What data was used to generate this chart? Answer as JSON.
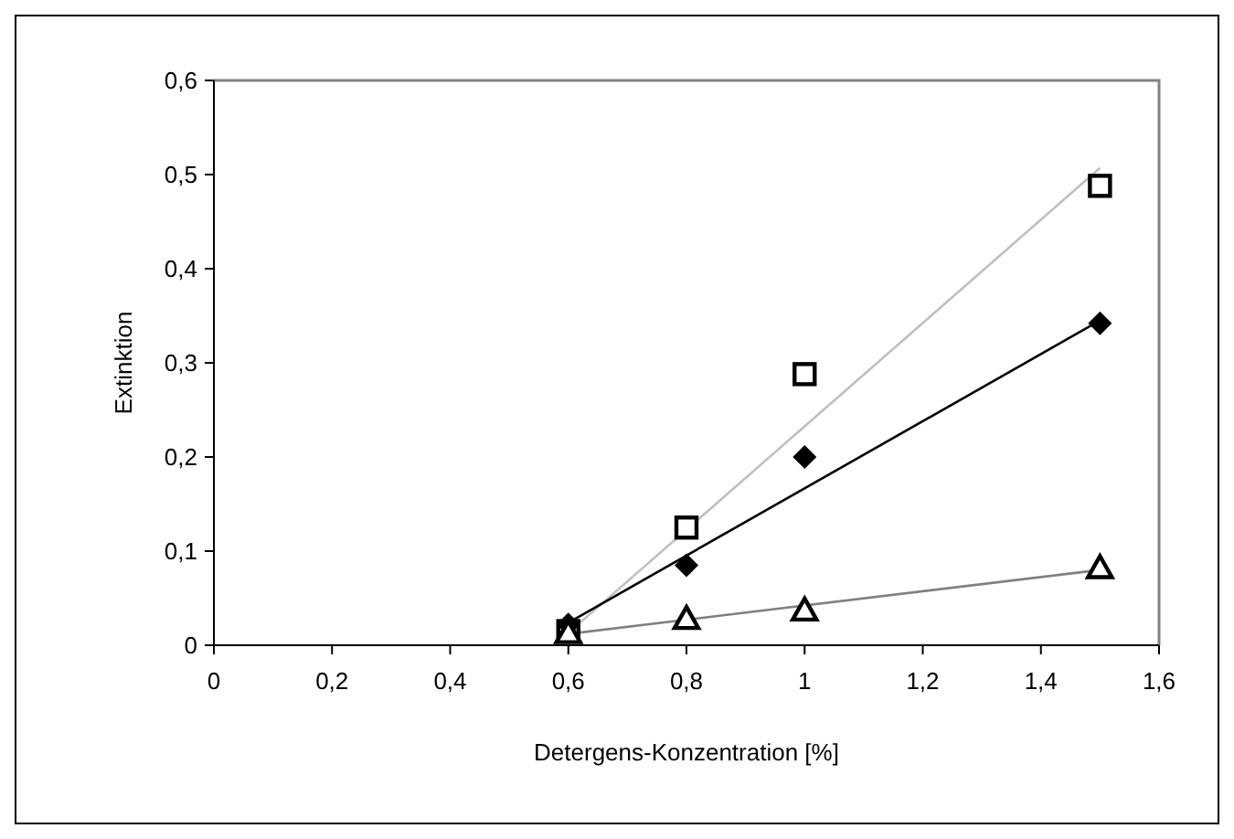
{
  "chart_data": {
    "type": "scatter",
    "xlabel": "Detergens-Konzentration [%]",
    "ylabel": "Extinktion",
    "xlim": [
      0,
      1.6
    ],
    "ylim": [
      0,
      0.6
    ],
    "xticks": [
      {
        "value": 0,
        "label": "0"
      },
      {
        "value": 0.2,
        "label": "0,2"
      },
      {
        "value": 0.4,
        "label": "0,4"
      },
      {
        "value": 0.6,
        "label": "0,6"
      },
      {
        "value": 0.8,
        "label": "0,8"
      },
      {
        "value": 1,
        "label": "1"
      },
      {
        "value": 1.2,
        "label": "1,2"
      },
      {
        "value": 1.4,
        "label": "1,4"
      },
      {
        "value": 1.6,
        "label": "1,6"
      }
    ],
    "yticks": [
      {
        "value": 0,
        "label": "0"
      },
      {
        "value": 0.1,
        "label": "0,1"
      },
      {
        "value": 0.2,
        "label": "0,2"
      },
      {
        "value": 0.3,
        "label": "0,3"
      },
      {
        "value": 0.4,
        "label": "0,4"
      },
      {
        "value": 0.5,
        "label": "0,5"
      },
      {
        "value": 0.6,
        "label": "0,6"
      }
    ],
    "grid": false,
    "series": [
      {
        "type": "line",
        "color": "#c0c0c0",
        "x": [
          0.6,
          1.5
        ],
        "values": [
          0.013,
          0.507
        ],
        "marker": "none"
      },
      {
        "type": "line",
        "color": "#000000",
        "x": [
          0.6,
          1.5
        ],
        "values": [
          0.024,
          0.345
        ],
        "marker": "none"
      },
      {
        "type": "line",
        "color": "#808080",
        "x": [
          0.6,
          1.5
        ],
        "values": [
          0.012,
          0.08
        ],
        "marker": "none"
      },
      {
        "color": "#000000",
        "x": [
          0.6,
          0.8,
          1,
          1.5
        ],
        "values": [
          0.015,
          0.125,
          0.288,
          0.488
        ],
        "marker": "square"
      },
      {
        "color": "#000000",
        "x": [
          0.6,
          0.8,
          1,
          1.5
        ],
        "values": [
          0.022,
          0.085,
          0.2,
          0.342
        ],
        "marker": "diamond"
      },
      {
        "color": "#000000",
        "x": [
          0.6,
          0.8,
          1,
          1.5
        ],
        "values": [
          0.013,
          0.028,
          0.037,
          0.082
        ],
        "marker": "triangle"
      }
    ]
  }
}
